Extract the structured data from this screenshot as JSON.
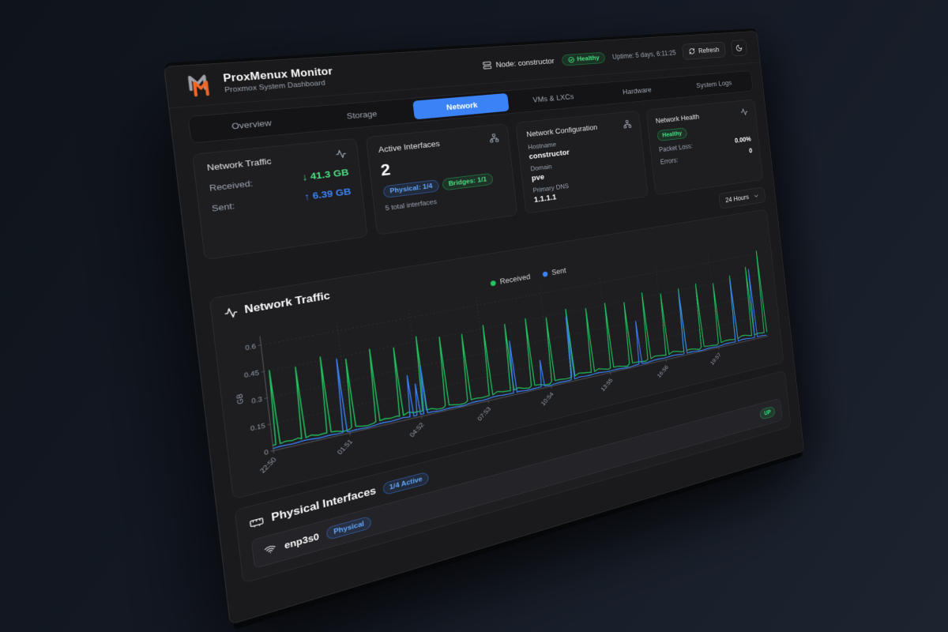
{
  "header": {
    "app_title": "ProxMenux Monitor",
    "app_subtitle": "Proxmox System Dashboard",
    "node_label": "Node: constructor",
    "health_badge": "Healthy",
    "uptime": "Uptime: 5 days, 6:11:25",
    "refresh_label": "Refresh"
  },
  "tabs": {
    "items": [
      {
        "label": "Overview",
        "active": false
      },
      {
        "label": "Storage",
        "active": false
      },
      {
        "label": "Network",
        "active": true
      },
      {
        "label": "VMs & LXCs",
        "active": false
      },
      {
        "label": "Hardware",
        "active": false
      },
      {
        "label": "System Logs",
        "active": false
      }
    ]
  },
  "cards": {
    "network_traffic": {
      "title": "Network Traffic",
      "received_label": "Received:",
      "received_value": "↓ 41.3 GB",
      "sent_label": "Sent:",
      "sent_value": "↑ 6.39 GB"
    },
    "active_interfaces": {
      "title": "Active Interfaces",
      "count": "2",
      "physical_badge": "Physical: 1/4",
      "bridges_badge": "Bridges: 1/1",
      "total_text": "5 total interfaces"
    },
    "network_config": {
      "title": "Network Configuration",
      "hostname_label": "Hostname",
      "hostname": "constructor",
      "domain_label": "Domain",
      "domain": "pve",
      "dns_label": "Primary DNS",
      "dns": "1.1.1.1"
    },
    "network_health": {
      "title": "Network Health",
      "status": "Healthy",
      "packet_loss_label": "Packet Loss:",
      "packet_loss": "0.00%",
      "errors_label": "Errors:",
      "errors": "0"
    }
  },
  "time_range": {
    "selected": "24 Hours"
  },
  "chart_data": {
    "type": "line",
    "title": "Network Traffic",
    "ylabel": "GB",
    "ylim": [
      0,
      0.65
    ],
    "y_ticks": [
      0,
      0.15,
      0.3,
      0.45,
      0.6
    ],
    "x_tick_labels": [
      "22:50",
      "01:51",
      "04:52",
      "07:53",
      "10:54",
      "13:55",
      "16:56",
      "19:57"
    ],
    "x_tick_minutes": [
      0,
      181,
      362,
      543,
      724,
      905,
      1086,
      1267
    ],
    "x_domain_minutes": [
      0,
      1445
    ],
    "grid": "dashed",
    "legend_position": "top",
    "legend": [
      {
        "name": "Received",
        "color": "#22c55e"
      },
      {
        "name": "Sent",
        "color": "#3b82f6"
      }
    ],
    "series": [
      {
        "name": "Received",
        "color": "#22c55e",
        "baseline_gb": 0.03,
        "spikes": [
          [
            12,
            0.45
          ],
          [
            72,
            0.44
          ],
          [
            132,
            0.47
          ],
          [
            192,
            0.43
          ],
          [
            252,
            0.46
          ],
          [
            312,
            0.44
          ],
          [
            372,
            0.48
          ],
          [
            432,
            0.45
          ],
          [
            492,
            0.44
          ],
          [
            552,
            0.47
          ],
          [
            612,
            0.45
          ],
          [
            672,
            0.46
          ],
          [
            732,
            0.44
          ],
          [
            792,
            0.47
          ],
          [
            852,
            0.45
          ],
          [
            912,
            0.46
          ],
          [
            972,
            0.44
          ],
          [
            1032,
            0.48
          ],
          [
            1092,
            0.45
          ],
          [
            1152,
            0.46
          ],
          [
            1212,
            0.47
          ],
          [
            1272,
            0.45
          ],
          [
            1332,
            0.48
          ],
          [
            1392,
            0.52
          ],
          [
            1438,
            0.62
          ]
        ]
      },
      {
        "name": "Sent",
        "color": "#3b82f6",
        "baseline_gb": 0.012,
        "spikes": [
          [
            170,
            0.44
          ],
          [
            338,
            0.26
          ],
          [
            356,
            0.2
          ],
          [
            374,
            0.3
          ],
          [
            620,
            0.34
          ],
          [
            700,
            0.18
          ],
          [
            790,
            0.42
          ],
          [
            1002,
            0.3
          ],
          [
            1152,
            0.44
          ],
          [
            1332,
            0.46
          ],
          [
            1402,
            0.5
          ]
        ]
      }
    ]
  },
  "physical_interfaces": {
    "title": "Physical Interfaces",
    "active_badge": "1/4 Active",
    "rows": [
      {
        "name": "enp3s0",
        "type_badge": "Physical",
        "status": "UP"
      }
    ]
  },
  "colors": {
    "accent_blue": "#3b82f6",
    "green": "#22c55e",
    "text_green": "#4ade80",
    "badge_blue_text": "#60a5fa",
    "logo_orange": "#f26522",
    "logo_gray": "#a1a1aa"
  }
}
